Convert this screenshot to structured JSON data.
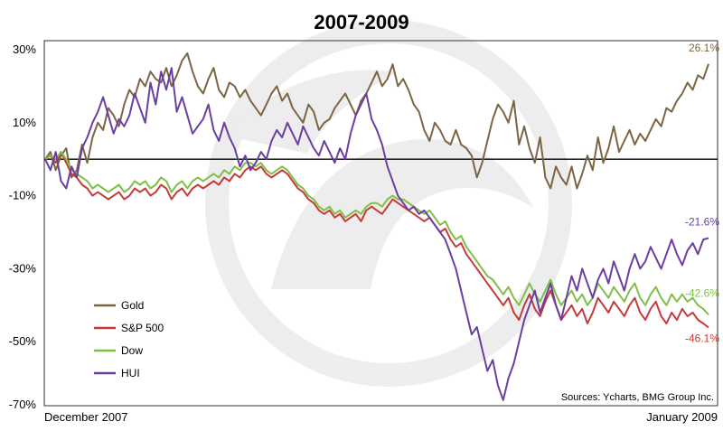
{
  "chart_data": {
    "type": "line",
    "title": "2007-2009",
    "source": "Sources: Ycharts, BMG Group Inc.",
    "x_start_label": "December 2007",
    "x_end_label": "January 2009",
    "ylim": [
      -70,
      30
    ],
    "yticks": [
      30,
      10,
      -10,
      -30,
      -50,
      -70
    ],
    "ytick_labels": [
      "30%",
      "10%",
      "-10%",
      "-30%",
      "-50%",
      "-70%"
    ],
    "reference_line": 0,
    "legend_position": "bottom-left",
    "series": [
      {
        "name": "Gold",
        "color": "#7b6543",
        "end_label": "26.1%",
        "values": [
          0,
          2,
          -3,
          1,
          3,
          -5,
          -3,
          4,
          -1,
          6,
          10,
          8,
          14,
          12,
          9,
          15,
          19,
          17,
          22,
          20,
          24,
          22,
          21,
          25,
          20,
          23,
          27,
          29,
          24,
          20,
          18,
          22,
          25,
          19,
          17,
          21,
          20,
          17,
          19,
          16,
          14,
          12,
          15,
          18,
          20,
          16,
          18,
          14,
          12,
          10,
          15,
          13,
          8,
          10,
          11,
          14,
          16,
          18,
          15,
          12,
          16,
          18,
          21,
          24,
          20,
          22,
          26,
          20,
          22,
          19,
          15,
          13,
          8,
          5,
          10,
          8,
          5,
          4,
          8,
          4,
          3,
          1,
          -5,
          -1,
          5,
          11,
          15,
          13,
          10,
          16,
          4,
          9,
          3,
          -1,
          6,
          -5,
          -8,
          -2,
          -5,
          -7,
          -2,
          -8,
          -4,
          1,
          -3,
          6,
          -1,
          3,
          9,
          2,
          5,
          8,
          4,
          7,
          5,
          8,
          11,
          9,
          14,
          13,
          16,
          18,
          21,
          19,
          23,
          22,
          26.1
        ]
      },
      {
        "name": "S&P 500",
        "color": "#c53a3a",
        "end_label": "-46.1%",
        "values": [
          0,
          1,
          -1,
          2,
          -1,
          -4,
          -5,
          -7,
          -8,
          -10,
          -9,
          -10,
          -11,
          -10,
          -9,
          -11,
          -10,
          -8,
          -9,
          -8,
          -10,
          -9,
          -7,
          -8,
          -11,
          -9,
          -8,
          -10,
          -8,
          -7,
          -8,
          -7,
          -6,
          -7,
          -5,
          -6,
          -4,
          -5,
          -3,
          -2,
          -3,
          -2,
          -4,
          -5,
          -4,
          -3,
          -4,
          -6,
          -8,
          -9,
          -11,
          -12,
          -14,
          -15,
          -14,
          -16,
          -15,
          -17,
          -16,
          -15,
          -17,
          -14,
          -13,
          -14,
          -15,
          -13,
          -11,
          -12,
          -13,
          -14,
          -15,
          -16,
          -17,
          -16,
          -18,
          -20,
          -19,
          -22,
          -24,
          -23,
          -26,
          -28,
          -30,
          -32,
          -34,
          -36,
          -38,
          -40,
          -38,
          -42,
          -44,
          -40,
          -37,
          -41,
          -43,
          -39,
          -36,
          -40,
          -44,
          -42,
          -40,
          -43,
          -41,
          -45,
          -42,
          -38,
          -40,
          -42,
          -39,
          -41,
          -43,
          -40,
          -38,
          -42,
          -44,
          -41,
          -39,
          -43,
          -45,
          -42,
          -44,
          -41,
          -43,
          -42,
          -44,
          -45,
          -46.1
        ]
      },
      {
        "name": "Dow",
        "color": "#7fbf47",
        "end_label": "-42.6%",
        "values": [
          0,
          1,
          0,
          2,
          0,
          -3,
          -4,
          -5,
          -6,
          -8,
          -7,
          -8,
          -9,
          -8,
          -7,
          -9,
          -8,
          -6,
          -7,
          -6,
          -8,
          -7,
          -5,
          -6,
          -9,
          -7,
          -6,
          -8,
          -6,
          -5,
          -6,
          -5,
          -4,
          -5,
          -3,
          -4,
          -2,
          -3,
          -1,
          -1,
          -2,
          -1,
          -3,
          -4,
          -3,
          -2,
          -3,
          -5,
          -7,
          -8,
          -10,
          -11,
          -13,
          -14,
          -13,
          -15,
          -14,
          -16,
          -15,
          -14,
          -15,
          -13,
          -12,
          -12,
          -13,
          -11,
          -10,
          -11,
          -11,
          -12,
          -13,
          -14,
          -15,
          -14,
          -16,
          -18,
          -17,
          -20,
          -22,
          -21,
          -24,
          -26,
          -28,
          -30,
          -32,
          -33,
          -35,
          -37,
          -35,
          -38,
          -40,
          -37,
          -34,
          -37,
          -39,
          -36,
          -33,
          -37,
          -40,
          -38,
          -36,
          -39,
          -37,
          -40,
          -38,
          -34,
          -36,
          -38,
          -35,
          -37,
          -39,
          -36,
          -34,
          -38,
          -40,
          -37,
          -35,
          -38,
          -40,
          -37,
          -39,
          -37,
          -39,
          -38,
          -40,
          -41,
          -42.6
        ]
      },
      {
        "name": "HUI",
        "color": "#6a3fa0",
        "end_label": "-21.6%",
        "values": [
          0,
          -3,
          2,
          -6,
          -8,
          -2,
          -5,
          3,
          6,
          10,
          13,
          17,
          12,
          7,
          11,
          9,
          12,
          18,
          14,
          10,
          21,
          15,
          24,
          19,
          25,
          13,
          17,
          12,
          7,
          9,
          11,
          15,
          8,
          5,
          10,
          6,
          3,
          -2,
          1,
          -3,
          -1,
          2,
          0,
          5,
          8,
          6,
          10,
          7,
          4,
          9,
          6,
          3,
          1,
          5,
          2,
          -1,
          3,
          0,
          7,
          12,
          15,
          18,
          11,
          8,
          4,
          -2,
          -6,
          -10,
          -12,
          -14,
          -13,
          -15,
          -14,
          -16,
          -18,
          -20,
          -22,
          -26,
          -30,
          -36,
          -42,
          -48,
          -46,
          -52,
          -58,
          -55,
          -62,
          -66,
          -60,
          -56,
          -50,
          -44,
          -40,
          -36,
          -42,
          -38,
          -34,
          -40,
          -44,
          -38,
          -32,
          -36,
          -30,
          -34,
          -38,
          -33,
          -30,
          -34,
          -28,
          -32,
          -36,
          -30,
          -26,
          -30,
          -28,
          -24,
          -27,
          -30,
          -26,
          -22,
          -26,
          -29,
          -25,
          -23,
          -26,
          -22,
          -21.6
        ]
      }
    ]
  }
}
